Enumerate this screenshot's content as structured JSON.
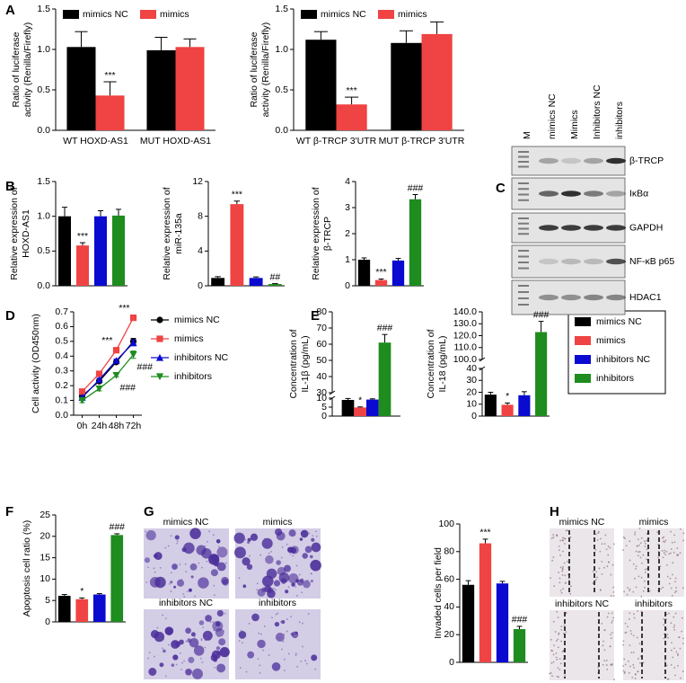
{
  "figure": {
    "panel_letters": [
      "A",
      "B",
      "C",
      "D",
      "E",
      "F",
      "G",
      "H"
    ],
    "blot": {
      "lanes": [
        "M",
        "mimics NC",
        "Mimics",
        "Inhibitors NC",
        "inhibitors"
      ],
      "proteins": [
        "β-TRCP",
        "IκBα",
        "GAPDH",
        "NF-κB p65",
        "HDAC1"
      ]
    },
    "invasion_images": [
      "mimics NC",
      "mimics",
      "inhibitors NC",
      "inhibitors"
    ],
    "wound_images": [
      "mimics NC",
      "mimics",
      "inhibitors NC",
      "inhibitors"
    ]
  },
  "chart_data": [
    {
      "type": "bar",
      "ylabel": [
        "Ratio of luciferase",
        "activity (Renilla/Firefly)"
      ],
      "categories": [
        "WT HOXD-AS1",
        "MUT HOXD-AS1"
      ],
      "series": [
        {
          "name": "mimics NC",
          "color": "#000000",
          "values": [
            1.03,
            0.99
          ],
          "errors": [
            0.19,
            0.16
          ],
          "significance": [
            null,
            null
          ]
        },
        {
          "name": "mimics",
          "color": "#f04343",
          "values": [
            0.43,
            1.03
          ],
          "errors": [
            0.17,
            0.1
          ],
          "significance": [
            "***",
            null
          ]
        }
      ],
      "ylim": [
        0,
        1.5
      ],
      "yticks": [
        {
          "value": 0,
          "label": "0.0"
        },
        0.5,
        {
          "value": 1,
          "label": "1.0"
        },
        1.5
      ],
      "legend": "top"
    },
    {
      "type": "bar",
      "ylabel": [
        "Ratio of luciferase",
        "activity (Renilla/Firefly)"
      ],
      "categories": [
        "WT β-TRCP 3'UTR",
        "MUT β-TRCP 3'UTR"
      ],
      "series": [
        {
          "name": "mimics NC",
          "color": "#000000",
          "values": [
            1.12,
            1.08
          ],
          "errors": [
            0.1,
            0.15
          ],
          "significance": [
            null,
            null
          ]
        },
        {
          "name": "mimics",
          "color": "#f04343",
          "values": [
            0.32,
            1.19
          ],
          "errors": [
            0.09,
            0.15
          ],
          "significance": [
            "***",
            null
          ]
        }
      ],
      "ylim": [
        0,
        1.5
      ],
      "yticks": [
        {
          "value": 0,
          "label": "0.0"
        },
        0.5,
        {
          "value": 1,
          "label": "1.0"
        },
        1.5
      ],
      "legend": "top"
    },
    {
      "type": "bar",
      "ylabel": [
        "Relative expression of",
        "HOXD-AS1"
      ],
      "values": [
        1.0,
        0.58,
        1.0,
        1.01
      ],
      "errors": [
        0.13,
        0.04,
        0.08,
        0.09
      ],
      "significance": [
        null,
        "***",
        null,
        null
      ],
      "colors": [
        "#000000",
        "#f04343",
        "#0a0ad0",
        "#1e8c1e"
      ],
      "ylim": [
        0,
        1.5
      ],
      "yticks": [
        {
          "value": 0,
          "label": "0.0"
        },
        0.5,
        {
          "value": 1,
          "label": "1.0"
        },
        1.5
      ]
    },
    {
      "type": "bar",
      "ylabel": [
        "Relative expression of",
        "miR-135a"
      ],
      "values": [
        0.9,
        9.4,
        0.9,
        0.2
      ],
      "errors": [
        0.15,
        0.35,
        0.12,
        0.05
      ],
      "significance": [
        null,
        "***",
        null,
        "##"
      ],
      "colors": [
        "#000000",
        "#f04343",
        "#0a0ad0",
        "#1e8c1e"
      ],
      "ylim": [
        0,
        12
      ],
      "yticks": [
        0,
        4,
        8,
        12
      ]
    },
    {
      "type": "bar",
      "ylabel": [
        "Relative expression of",
        "β-TRCP"
      ],
      "values": [
        1.0,
        0.22,
        0.97,
        3.32
      ],
      "errors": [
        0.07,
        0.04,
        0.08,
        0.18
      ],
      "significance": [
        null,
        "***",
        null,
        "###"
      ],
      "colors": [
        "#000000",
        "#f04343",
        "#0a0ad0",
        "#1e8c1e"
      ],
      "ylim": [
        0,
        4
      ],
      "yticks": [
        0,
        1,
        2,
        3,
        4
      ]
    },
    {
      "type": "line",
      "ylabel": [
        "Cell activity (OD450nm)"
      ],
      "categories": [
        "0h",
        "24h",
        "48h",
        "72h"
      ],
      "series": [
        {
          "name": "mimics NC",
          "color": "#000000",
          "marker": "circle",
          "values": [
            0.13,
            0.23,
            0.36,
            0.5
          ],
          "errors": [
            0.01,
            0.01,
            0.01,
            0.02
          ],
          "significance": [
            null,
            null,
            null,
            null
          ]
        },
        {
          "name": "mimics",
          "color": "#f04343",
          "marker": "square",
          "values": [
            0.16,
            0.28,
            0.44,
            0.66
          ],
          "errors": [
            0.01,
            0.01,
            0.015,
            0.015
          ],
          "significance": [
            null,
            null,
            "***",
            "***"
          ]
        },
        {
          "name": "inhibitors NC",
          "color": "#0a0ad0",
          "marker": "triangle",
          "values": [
            0.12,
            0.24,
            0.37,
            0.49
          ],
          "errors": [
            0.01,
            0.01,
            0.01,
            0.02
          ],
          "significance": [
            null,
            null,
            null,
            null
          ]
        },
        {
          "name": "inhibitors",
          "color": "#1e8c1e",
          "marker": "triangle-down",
          "values": [
            0.1,
            0.18,
            0.27,
            0.41
          ],
          "errors": [
            0.015,
            0.015,
            0.01,
            0.025
          ],
          "significance": [
            null,
            null,
            "###",
            "###"
          ]
        }
      ],
      "ylim": [
        0,
        0.7
      ],
      "yticks": [
        {
          "value": 0,
          "label": "0.0"
        },
        0.1,
        0.2,
        0.3,
        0.4,
        0.5,
        0.6,
        0.7
      ],
      "legend": "right"
    },
    {
      "type": "bar",
      "ylabel": [
        "Concentration of",
        "IL-1β (pg/mL)"
      ],
      "series": [
        {
          "name": "mimics NC",
          "color": "#000000",
          "values": [
            9
          ],
          "errors": [
            0.8
          ],
          "significance": [
            null
          ]
        },
        {
          "name": "mimics",
          "color": "#f04343",
          "values": [
            4.8
          ],
          "errors": [
            0.3
          ],
          "significance": [
            "*"
          ]
        },
        {
          "name": "inhibitors NC",
          "color": "#0a0ad0",
          "values": [
            9.2
          ],
          "errors": [
            0.4
          ],
          "significance": [
            null
          ]
        },
        {
          "name": "inhibitors",
          "color": "#1e8c1e",
          "values": [
            61
          ],
          "errors": [
            5
          ],
          "significance": [
            "###"
          ]
        }
      ],
      "ylim": [
        0,
        80
      ],
      "ybreak": [
        10,
        30
      ],
      "yticks": [
        0,
        5,
        10,
        30,
        40,
        50,
        60,
        70,
        80
      ],
      "legend": "right"
    },
    {
      "type": "bar",
      "ylabel": [
        "Concentration of",
        "IL-18 (pg/mL)"
      ],
      "values": [
        18,
        9.5,
        17.5,
        123
      ],
      "errors": [
        2,
        1.5,
        3,
        9
      ],
      "significance": [
        null,
        "*",
        null,
        "###"
      ],
      "colors": [
        "#000000",
        "#f04343",
        "#0a0ad0",
        "#1e8c1e"
      ],
      "ylim": [
        0,
        140
      ],
      "ybreak": [
        40,
        100
      ],
      "yticks": [
        0,
        10,
        20,
        30,
        40,
        {
          "value": 100,
          "label": "100.0"
        },
        {
          "value": 110,
          "label": "110.0"
        },
        {
          "value": 120,
          "label": "120.0"
        },
        {
          "value": 130,
          "label": "130.0"
        },
        {
          "value": 140,
          "label": "140.0"
        }
      ]
    },
    {
      "type": "bar",
      "ylabel": [
        "Apoptosis cell ratio (%)"
      ],
      "values": [
        6.1,
        5.3,
        6.4,
        20.3
      ],
      "errors": [
        0.3,
        0.3,
        0.2,
        0.3
      ],
      "significance": [
        null,
        "*",
        null,
        "###"
      ],
      "colors": [
        "#000000",
        "#f04343",
        "#0a0ad0",
        "#1e8c1e"
      ],
      "ylim": [
        0,
        25
      ],
      "yticks": [
        0,
        5,
        10,
        15,
        20,
        25
      ]
    },
    {
      "type": "bar",
      "ylabel": [
        "Invaded cells per field"
      ],
      "values": [
        56,
        86,
        57,
        24
      ],
      "errors": [
        3,
        3,
        1.5,
        2
      ],
      "significance": [
        null,
        "***",
        null,
        "###"
      ],
      "colors": [
        "#000000",
        "#f04343",
        "#0a0ad0",
        "#1e8c1e"
      ],
      "ylim": [
        0,
        100
      ],
      "yticks": [
        0,
        20,
        40,
        60,
        80,
        100
      ]
    }
  ]
}
